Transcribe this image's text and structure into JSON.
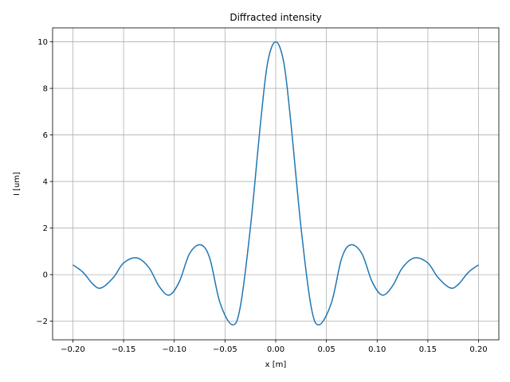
{
  "chart_data": {
    "type": "line",
    "title": "Diffracted intensity",
    "xlabel": "x [m]",
    "ylabel": "I [um]",
    "xlim": [
      -0.22,
      0.22
    ],
    "ylim": [
      -2.8,
      10.6
    ],
    "x_ticks": [
      -0.2,
      -0.15,
      -0.1,
      -0.05,
      0.0,
      0.05,
      0.1,
      0.15,
      0.2
    ],
    "x_tick_labels": [
      "−0.20",
      "−0.15",
      "−0.10",
      "−0.05",
      "0.00",
      "0.05",
      "0.10",
      "0.15",
      "0.20"
    ],
    "y_ticks": [
      -2,
      0,
      2,
      4,
      6,
      8,
      10
    ],
    "y_tick_labels": [
      "−2",
      "0",
      "2",
      "4",
      "6",
      "8",
      "10"
    ],
    "grid": true,
    "series": [
      {
        "color": "#1f77b4",
        "x": [
          -0.2,
          -0.19,
          -0.18,
          -0.172,
          -0.16,
          -0.15,
          -0.137,
          -0.125,
          -0.115,
          -0.105,
          -0.095,
          -0.085,
          -0.074,
          -0.065,
          -0.055,
          -0.043,
          -0.035,
          -0.025,
          -0.015,
          -0.008,
          0.0,
          0.008,
          0.015,
          0.025,
          0.035,
          0.043,
          0.055,
          0.065,
          0.074,
          0.085,
          0.095,
          0.105,
          0.115,
          0.125,
          0.137,
          0.15,
          0.16,
          0.172,
          0.18,
          0.19,
          0.2
        ],
        "y": [
          0.42,
          0.1,
          -0.42,
          -0.57,
          -0.12,
          0.5,
          0.72,
          0.3,
          -0.5,
          -0.88,
          -0.3,
          0.9,
          1.28,
          0.7,
          -1.2,
          -2.15,
          -1.4,
          2.0,
          6.5,
          9.1,
          10.0,
          9.1,
          6.5,
          2.0,
          -1.4,
          -2.15,
          -1.2,
          0.7,
          1.28,
          0.9,
          -0.3,
          -0.88,
          -0.5,
          0.3,
          0.72,
          0.5,
          -0.12,
          -0.57,
          -0.42,
          0.1,
          0.42
        ]
      }
    ]
  }
}
